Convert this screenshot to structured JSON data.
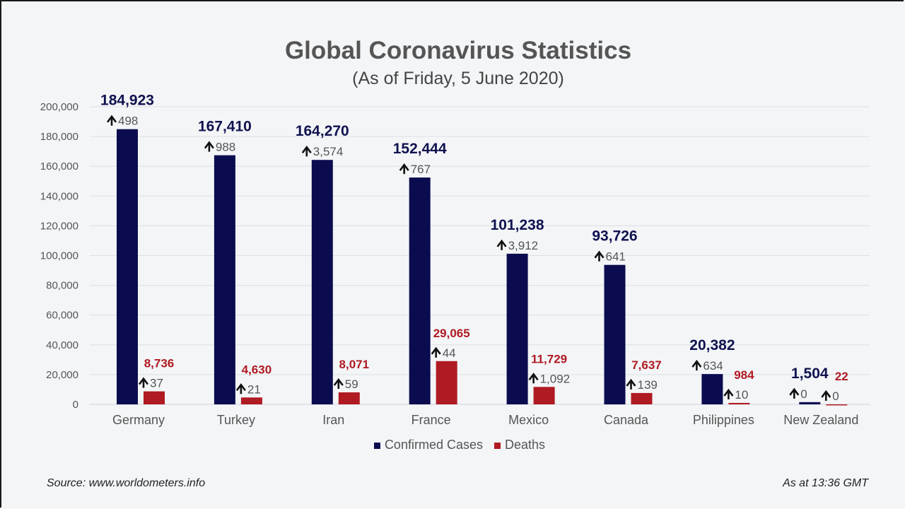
{
  "chart_data": {
    "type": "bar",
    "title": "Global Coronavirus Statistics",
    "subtitle": "(As of Friday, 5 June 2020)",
    "categories": [
      "Germany",
      "Turkey",
      "Iran",
      "France",
      "Mexico",
      "Canada",
      "Philippines",
      "New Zealand"
    ],
    "series": [
      {
        "name": "Confirmed Cases",
        "color": "#0b0c4f",
        "values": [
          184923,
          167410,
          164270,
          152444,
          101238,
          93726,
          20382,
          1504
        ],
        "daily_increase": [
          498,
          988,
          3574,
          767,
          3912,
          641,
          634,
          0
        ]
      },
      {
        "name": "Deaths",
        "color": "#b01a22",
        "values": [
          8736,
          4630,
          8071,
          29065,
          11729,
          7637,
          984,
          22
        ],
        "daily_increase": [
          37,
          21,
          59,
          44,
          1092,
          139,
          10,
          0
        ]
      }
    ],
    "ylim": [
      0,
      200000
    ],
    "yticks": [
      0,
      20000,
      40000,
      60000,
      80000,
      100000,
      120000,
      140000,
      160000,
      180000,
      200000
    ],
    "grid": true,
    "legend_position": "bottom",
    "increase_icon": "arrow-up-icon"
  },
  "footer": {
    "source": "Source: www.worldometers.info",
    "as_at": "As at 13:36 GMT"
  }
}
